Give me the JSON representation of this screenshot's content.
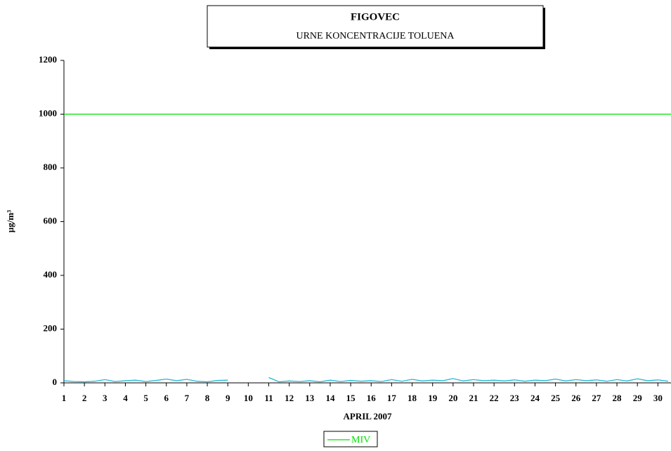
{
  "chart_data": {
    "type": "line",
    "title": "FIGOVEC",
    "subtitle": "URNE KONCENTRACIJE TOLUENA",
    "x_label": "APRIL 2007",
    "y_label": "µg/m³",
    "xlim": [
      1,
      30.64
    ],
    "xticks": [
      1,
      2,
      3,
      4,
      5,
      6,
      7,
      8,
      9,
      10,
      11,
      12,
      13,
      14,
      15,
      16,
      17,
      18,
      19,
      20,
      21,
      22,
      23,
      24,
      25,
      26,
      27,
      28,
      29,
      30
    ],
    "ylim": [
      0,
      1200
    ],
    "yticks": [
      0,
      200,
      400,
      600,
      800,
      1000,
      1200
    ],
    "legend": "bottom",
    "series": [
      {
        "name": "MIV",
        "color": "#00e000",
        "x": [
          1,
          30.64
        ],
        "values": [
          1000,
          1000
        ]
      },
      {
        "color": "#1fb8d8",
        "x": [
          1,
          1.5,
          2,
          2.5,
          3,
          3.5,
          4,
          4.5,
          5,
          5.5,
          6,
          6.5,
          7,
          7.5,
          8,
          8.5,
          9,
          9.5,
          10,
          10.5,
          11,
          11.5,
          12,
          12.5,
          13,
          13.5,
          14,
          14.5,
          15,
          15.5,
          16,
          16.5,
          17,
          17.5,
          18,
          18.5,
          19,
          19.5,
          20,
          20.5,
          21,
          21.5,
          22,
          22.5,
          23,
          23.5,
          24,
          24.5,
          25,
          25.5,
          26,
          26.5,
          27,
          27.5,
          28,
          28.5,
          29,
          29.5,
          30,
          30.5
        ],
        "values": [
          8,
          5,
          4,
          6,
          12,
          5,
          8,
          10,
          5,
          9,
          14,
          8,
          13,
          6,
          4,
          9,
          10,
          null,
          null,
          null,
          20,
          4,
          7,
          5,
          8,
          4,
          10,
          5,
          9,
          6,
          8,
          5,
          12,
          6,
          13,
          7,
          10,
          8,
          16,
          7,
          12,
          8,
          10,
          7,
          11,
          6,
          10,
          8,
          14,
          7,
          12,
          8,
          11,
          6,
          12,
          7,
          15,
          8,
          11,
          6
        ]
      }
    ]
  }
}
